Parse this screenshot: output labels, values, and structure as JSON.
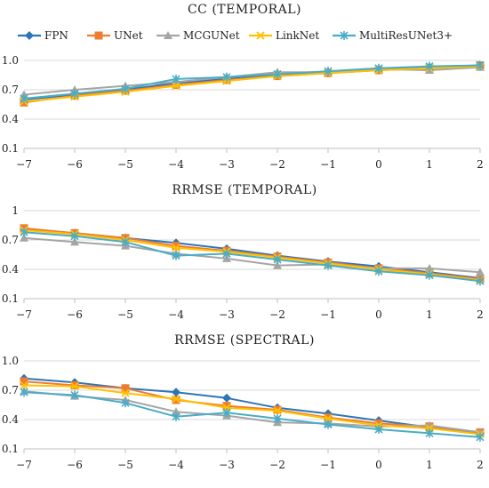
{
  "legend": {
    "placement": "top",
    "entries": [
      {
        "name": "FPN",
        "color": "#2e75b6",
        "marker": "diamond"
      },
      {
        "name": "UNet",
        "color": "#ed7d31",
        "marker": "square"
      },
      {
        "name": "MCGUNet",
        "color": "#a5a5a5",
        "marker": "triangle"
      },
      {
        "name": "LinkNet",
        "color": "#ffc000",
        "marker": "x"
      },
      {
        "name": "MultiResUNet3+",
        "color": "#4bacc6",
        "marker": "star"
      }
    ]
  },
  "chart_data": [
    {
      "type": "line",
      "title": "CC (TEMPORAL)",
      "x": [
        -7,
        -6,
        -5,
        -4,
        -3,
        -2,
        -1,
        0,
        1,
        2
      ],
      "ylim": [
        0.1,
        1.0
      ],
      "yticks": [
        "1.0",
        "0.7",
        "0.4",
        "0.1"
      ],
      "ytick_values": [
        1.0,
        0.7,
        0.4,
        0.1
      ],
      "grid": true,
      "series": [
        {
          "name": "FPN",
          "values": [
            0.6,
            0.65,
            0.7,
            0.77,
            0.81,
            0.85,
            0.88,
            0.91,
            0.93,
            0.95
          ]
        },
        {
          "name": "UNet",
          "values": [
            0.57,
            0.64,
            0.69,
            0.75,
            0.8,
            0.84,
            0.87,
            0.9,
            0.92,
            0.95
          ]
        },
        {
          "name": "MCGUNet",
          "values": [
            0.65,
            0.7,
            0.74,
            0.78,
            0.83,
            0.88,
            0.88,
            0.91,
            0.9,
            0.93
          ]
        },
        {
          "name": "LinkNet",
          "values": [
            0.58,
            0.63,
            0.68,
            0.74,
            0.79,
            0.84,
            0.87,
            0.9,
            0.92,
            0.94
          ]
        },
        {
          "name": "MultiResUNet3+",
          "values": [
            0.61,
            0.66,
            0.71,
            0.81,
            0.83,
            0.86,
            0.89,
            0.92,
            0.94,
            0.95
          ]
        }
      ]
    },
    {
      "type": "line",
      "title": "RRMSE (TEMPORAL)",
      "x": [
        -7,
        -6,
        -5,
        -4,
        -3,
        -2,
        -1,
        0,
        1,
        2
      ],
      "ylim": [
        0.1,
        1.0
      ],
      "yticks": [
        "1",
        "0.7",
        "0.4",
        "0.1"
      ],
      "ytick_values": [
        1.0,
        0.7,
        0.4,
        0.1
      ],
      "grid": true,
      "series": [
        {
          "name": "FPN",
          "values": [
            0.81,
            0.77,
            0.72,
            0.67,
            0.61,
            0.54,
            0.48,
            0.43,
            0.37,
            0.31
          ]
        },
        {
          "name": "UNet",
          "values": [
            0.82,
            0.77,
            0.72,
            0.64,
            0.59,
            0.53,
            0.47,
            0.41,
            0.36,
            0.3
          ]
        },
        {
          "name": "MCGUNet",
          "values": [
            0.72,
            0.68,
            0.64,
            0.56,
            0.51,
            0.44,
            0.45,
            0.41,
            0.41,
            0.37
          ]
        },
        {
          "name": "LinkNet",
          "values": [
            0.8,
            0.76,
            0.7,
            0.62,
            0.58,
            0.52,
            0.46,
            0.4,
            0.35,
            0.29
          ]
        },
        {
          "name": "MultiResUNet3+",
          "values": [
            0.78,
            0.74,
            0.68,
            0.54,
            0.56,
            0.5,
            0.44,
            0.38,
            0.34,
            0.28
          ]
        }
      ]
    },
    {
      "type": "line",
      "title": "RRMSE (SPECTRAL)",
      "x": [
        -7,
        -6,
        -5,
        -4,
        -3,
        -2,
        -1,
        0,
        1,
        2
      ],
      "ylim": [
        0.1,
        1.0
      ],
      "yticks": [
        "1.0",
        "0.7",
        "0.4",
        "0.1"
      ],
      "ytick_values": [
        1.0,
        0.7,
        0.4,
        0.1
      ],
      "grid": true,
      "series": [
        {
          "name": "FPN",
          "values": [
            0.82,
            0.78,
            0.72,
            0.68,
            0.62,
            0.52,
            0.46,
            0.39,
            0.32,
            0.26
          ]
        },
        {
          "name": "UNet",
          "values": [
            0.79,
            0.75,
            0.72,
            0.6,
            0.54,
            0.5,
            0.42,
            0.36,
            0.33,
            0.27
          ]
        },
        {
          "name": "MCGUNet",
          "values": [
            0.69,
            0.64,
            0.6,
            0.48,
            0.44,
            0.37,
            0.36,
            0.33,
            0.34,
            0.27
          ]
        },
        {
          "name": "LinkNet",
          "values": [
            0.75,
            0.74,
            0.67,
            0.61,
            0.52,
            0.49,
            0.41,
            0.34,
            0.31,
            0.25
          ]
        },
        {
          "name": "MultiResUNet3+",
          "values": [
            0.68,
            0.65,
            0.57,
            0.43,
            0.47,
            0.41,
            0.35,
            0.3,
            0.26,
            0.22
          ]
        }
      ]
    }
  ]
}
